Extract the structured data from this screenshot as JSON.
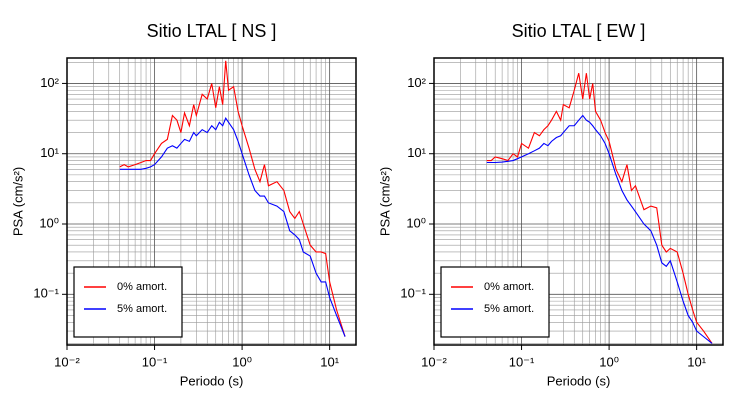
{
  "chart_data": [
    {
      "type": "line",
      "title": "Sitio LTAL [ NS ]",
      "xlabel": "Periodo (s)",
      "ylabel": "PSA (cm/s²)",
      "xscale": "log",
      "yscale": "log",
      "grid": true,
      "legend": "lower left",
      "xlim": [
        0.01,
        20
      ],
      "ylim": [
        0.019,
        230
      ],
      "xticks": [
        {
          "value": 0.01,
          "label": "10⁻²"
        },
        {
          "value": 0.1,
          "label": "10⁻¹"
        },
        {
          "value": 1,
          "label": "10⁰"
        },
        {
          "value": 10,
          "label": "10¹"
        }
      ],
      "yticks": [
        {
          "value": 0.1,
          "label": "10⁻¹"
        },
        {
          "value": 1,
          "label": "10⁰"
        },
        {
          "value": 10,
          "label": "10¹"
        },
        {
          "value": 100,
          "label": "10²"
        }
      ],
      "xminor": [
        0.02,
        0.03,
        0.04,
        0.05,
        0.06,
        0.07,
        0.08,
        0.09,
        0.2,
        0.3,
        0.4,
        0.5,
        0.6,
        0.7,
        0.8,
        0.9,
        2,
        3,
        4,
        5,
        6,
        7,
        8,
        9
      ],
      "yminor": [
        0.02,
        0.03,
        0.04,
        0.05,
        0.06,
        0.07,
        0.08,
        0.09,
        0.2,
        0.3,
        0.4,
        0.5,
        0.6,
        0.7,
        0.8,
        0.9,
        2,
        3,
        4,
        5,
        6,
        7,
        8,
        9,
        20,
        30,
        40,
        50,
        60,
        70,
        80,
        90,
        200
      ],
      "x": [
        0.04,
        0.045,
        0.05,
        0.06,
        0.07,
        0.08,
        0.09,
        0.1,
        0.12,
        0.14,
        0.16,
        0.18,
        0.2,
        0.22,
        0.25,
        0.28,
        0.3,
        0.35,
        0.4,
        0.45,
        0.5,
        0.55,
        0.6,
        0.65,
        0.7,
        0.8,
        0.9,
        1.0,
        1.2,
        1.4,
        1.6,
        1.8,
        2.0,
        2.5,
        3.0,
        3.5,
        4.0,
        4.5,
        5,
        6,
        7,
        8,
        9,
        10,
        12,
        15
      ],
      "series": [
        {
          "name": "0% amort.",
          "color": "#ff0000",
          "values": [
            6.5,
            7,
            6.5,
            7,
            7.5,
            8,
            8,
            10,
            14,
            16,
            35,
            30,
            20,
            38,
            25,
            50,
            35,
            70,
            60,
            100,
            45,
            90,
            50,
            210,
            80,
            90,
            40,
            25,
            12,
            6,
            4,
            7,
            3.5,
            4,
            3,
            1.5,
            1.2,
            1.5,
            1.0,
            0.5,
            0.4,
            0.4,
            0.38,
            0.15,
            0.06,
            0.025
          ]
        },
        {
          "name": "5% amort.",
          "color": "#0000ff",
          "values": [
            6,
            6,
            6,
            6,
            6,
            6.2,
            6.5,
            7,
            9,
            12,
            13,
            12,
            14,
            16,
            15,
            20,
            18,
            22,
            20,
            25,
            22,
            28,
            25,
            32,
            28,
            22,
            15,
            10,
            5,
            3,
            2.5,
            2.5,
            2,
            1.8,
            1.5,
            0.8,
            0.7,
            0.6,
            0.4,
            0.35,
            0.2,
            0.15,
            0.15,
            0.09,
            0.05,
            0.025
          ]
        }
      ]
    },
    {
      "type": "line",
      "title": "Sitio LTAL [ EW ]",
      "xlabel": "Periodo (s)",
      "ylabel": "PSA (cm/s²)",
      "xscale": "log",
      "yscale": "log",
      "grid": true,
      "legend": "lower left",
      "xlim": [
        0.01,
        20
      ],
      "ylim": [
        0.019,
        230
      ],
      "xticks": [
        {
          "value": 0.01,
          "label": "10⁻²"
        },
        {
          "value": 0.1,
          "label": "10⁻¹"
        },
        {
          "value": 1,
          "label": "10⁰"
        },
        {
          "value": 10,
          "label": "10¹"
        }
      ],
      "yticks": [
        {
          "value": 0.1,
          "label": "10⁻¹"
        },
        {
          "value": 1,
          "label": "10⁰"
        },
        {
          "value": 10,
          "label": "10¹"
        },
        {
          "value": 100,
          "label": "10²"
        }
      ],
      "xminor": [
        0.02,
        0.03,
        0.04,
        0.05,
        0.06,
        0.07,
        0.08,
        0.09,
        0.2,
        0.3,
        0.4,
        0.5,
        0.6,
        0.7,
        0.8,
        0.9,
        2,
        3,
        4,
        5,
        6,
        7,
        8,
        9
      ],
      "yminor": [
        0.02,
        0.03,
        0.04,
        0.05,
        0.06,
        0.07,
        0.08,
        0.09,
        0.2,
        0.3,
        0.4,
        0.5,
        0.6,
        0.7,
        0.8,
        0.9,
        2,
        3,
        4,
        5,
        6,
        7,
        8,
        9,
        20,
        30,
        40,
        50,
        60,
        70,
        80,
        90,
        200
      ],
      "x": [
        0.04,
        0.045,
        0.05,
        0.06,
        0.07,
        0.08,
        0.09,
        0.1,
        0.12,
        0.14,
        0.16,
        0.18,
        0.2,
        0.22,
        0.25,
        0.28,
        0.3,
        0.35,
        0.4,
        0.45,
        0.5,
        0.55,
        0.6,
        0.65,
        0.7,
        0.8,
        0.9,
        1.0,
        1.2,
        1.4,
        1.6,
        1.8,
        2.0,
        2.5,
        3.0,
        3.5,
        4.0,
        4.5,
        5,
        6,
        7,
        8,
        9,
        10,
        12,
        15
      ],
      "series": [
        {
          "name": "0% amort.",
          "color": "#ff0000",
          "values": [
            8,
            8,
            9,
            8.5,
            8,
            10,
            9,
            14,
            12,
            20,
            18,
            22,
            25,
            30,
            40,
            30,
            50,
            45,
            80,
            140,
            60,
            140,
            60,
            100,
            40,
            30,
            20,
            15,
            6,
            4,
            7,
            3,
            3.5,
            1.6,
            1.8,
            1.7,
            0.5,
            0.4,
            0.45,
            0.4,
            0.2,
            0.1,
            0.06,
            0.04,
            0.03,
            0.02
          ]
        },
        {
          "name": "5% amort.",
          "color": "#0000ff",
          "values": [
            7.5,
            7.5,
            7.5,
            7.6,
            7.8,
            8,
            8.5,
            9,
            10,
            11,
            12,
            14,
            13,
            15,
            17,
            18,
            20,
            25,
            25,
            30,
            35,
            30,
            28,
            25,
            22,
            18,
            14,
            10,
            5,
            3,
            2.2,
            1.8,
            1.5,
            1.0,
            0.8,
            0.5,
            0.28,
            0.25,
            0.3,
            0.15,
            0.08,
            0.05,
            0.04,
            0.03,
            0.025,
            0.02
          ]
        }
      ]
    }
  ]
}
